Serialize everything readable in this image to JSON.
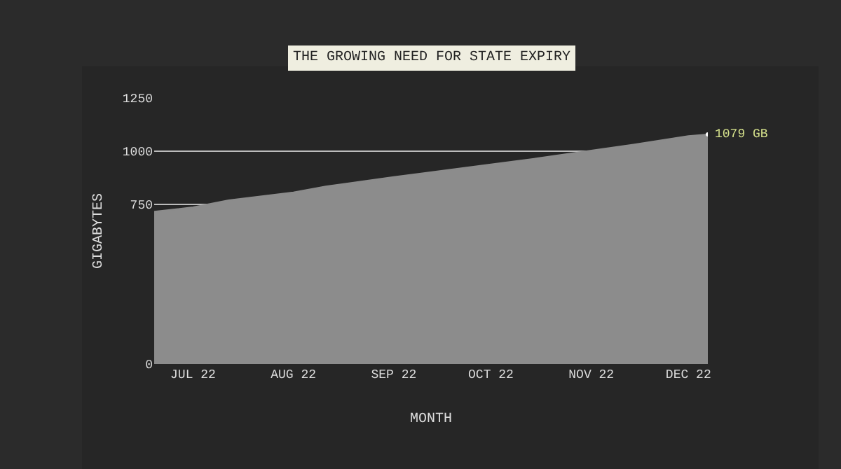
{
  "chart_data": {
    "type": "area",
    "title": "THE GROWING NEED FOR STATE EXPIRY",
    "xlabel": "MONTH",
    "ylabel": "GIGABYTES",
    "x": [
      "2022-06-19",
      "2022-07-01",
      "2022-07-12",
      "2022-08-01",
      "2022-08-11",
      "2022-09-01",
      "2022-09-09",
      "2022-10-01",
      "2022-10-15",
      "2022-11-01",
      "2022-11-14",
      "2022-12-01",
      "2022-12-07"
    ],
    "series": [
      {
        "color": "#8c8c8c",
        "values": [
          716,
          737,
          770,
          807,
          835,
          879,
          895,
          938,
          966,
          1003,
          1031,
          1072,
          1079
        ]
      }
    ],
    "xlim": [
      "2022-06-19",
      "2022-12-07"
    ],
    "xticks": [
      {
        "value": "2022-07-01",
        "label": "JUL 22"
      },
      {
        "value": "2022-08-01",
        "label": "AUG 22"
      },
      {
        "value": "2022-09-01",
        "label": "SEP 22"
      },
      {
        "value": "2022-10-01",
        "label": "OCT 22"
      },
      {
        "value": "2022-11-01",
        "label": "NOV 22"
      },
      {
        "value": "2022-12-01",
        "label": "DEC 22"
      }
    ],
    "ylim": [
      0,
      1250
    ],
    "yticks": [
      0,
      750,
      1000,
      1250
    ],
    "annotations": [
      {
        "text": "1079 GB",
        "x": "2022-12-07",
        "y": 1079
      }
    ],
    "grid": "y"
  }
}
